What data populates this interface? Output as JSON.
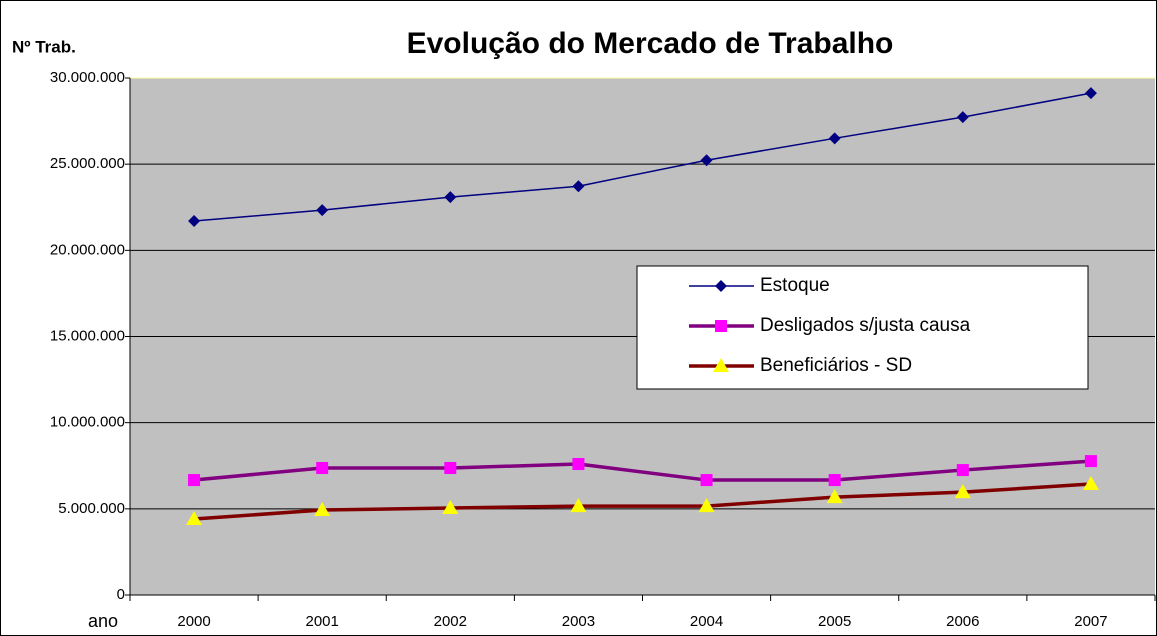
{
  "chart_data": {
    "type": "line",
    "title": "Evolução do Mercado de Trabalho",
    "y_label": "Nº Trab.",
    "x_label": "ano",
    "categories": [
      "2000",
      "2001",
      "2002",
      "2003",
      "2004",
      "2005",
      "2006",
      "2007"
    ],
    "series": [
      {
        "name": "Estoque",
        "color": "#000080",
        "marker_color": "#000080",
        "marker": "diamond",
        "line_width": 1.5,
        "values": [
          21700000,
          22330000,
          23090000,
          23720000,
          25230000,
          26500000,
          27730000,
          29120000
        ]
      },
      {
        "name": "Desligados s/justa causa",
        "color": "#800080",
        "marker_color": "#ff00ff",
        "marker": "square",
        "line_width": 3.5,
        "values": [
          6670000,
          7370000,
          7370000,
          7600000,
          6670000,
          6670000,
          7250000,
          7770000
        ]
      },
      {
        "name": "Beneficiários - SD",
        "color": "#800000",
        "marker_color": "#ffff00",
        "marker": "triangle",
        "line_width": 3.5,
        "values": [
          4410000,
          4930000,
          5050000,
          5160000,
          5160000,
          5680000,
          5970000,
          6440000
        ]
      }
    ],
    "ylim": [
      0,
      30000000
    ],
    "yticks": [
      0,
      {
        "value": 5000000,
        "label": "5.000.000"
      },
      {
        "value": 10000000,
        "label": "10.000.000"
      },
      {
        "value": 15000000,
        "label": "15.000.000"
      },
      {
        "value": 20000000,
        "label": "20.000.000"
      },
      {
        "value": 25000000,
        "label": "25.000.000"
      },
      {
        "value": 30000000,
        "label": "30.000.000"
      }
    ],
    "grid": true,
    "plot_background": "#c0c0c0",
    "legend": "right"
  }
}
